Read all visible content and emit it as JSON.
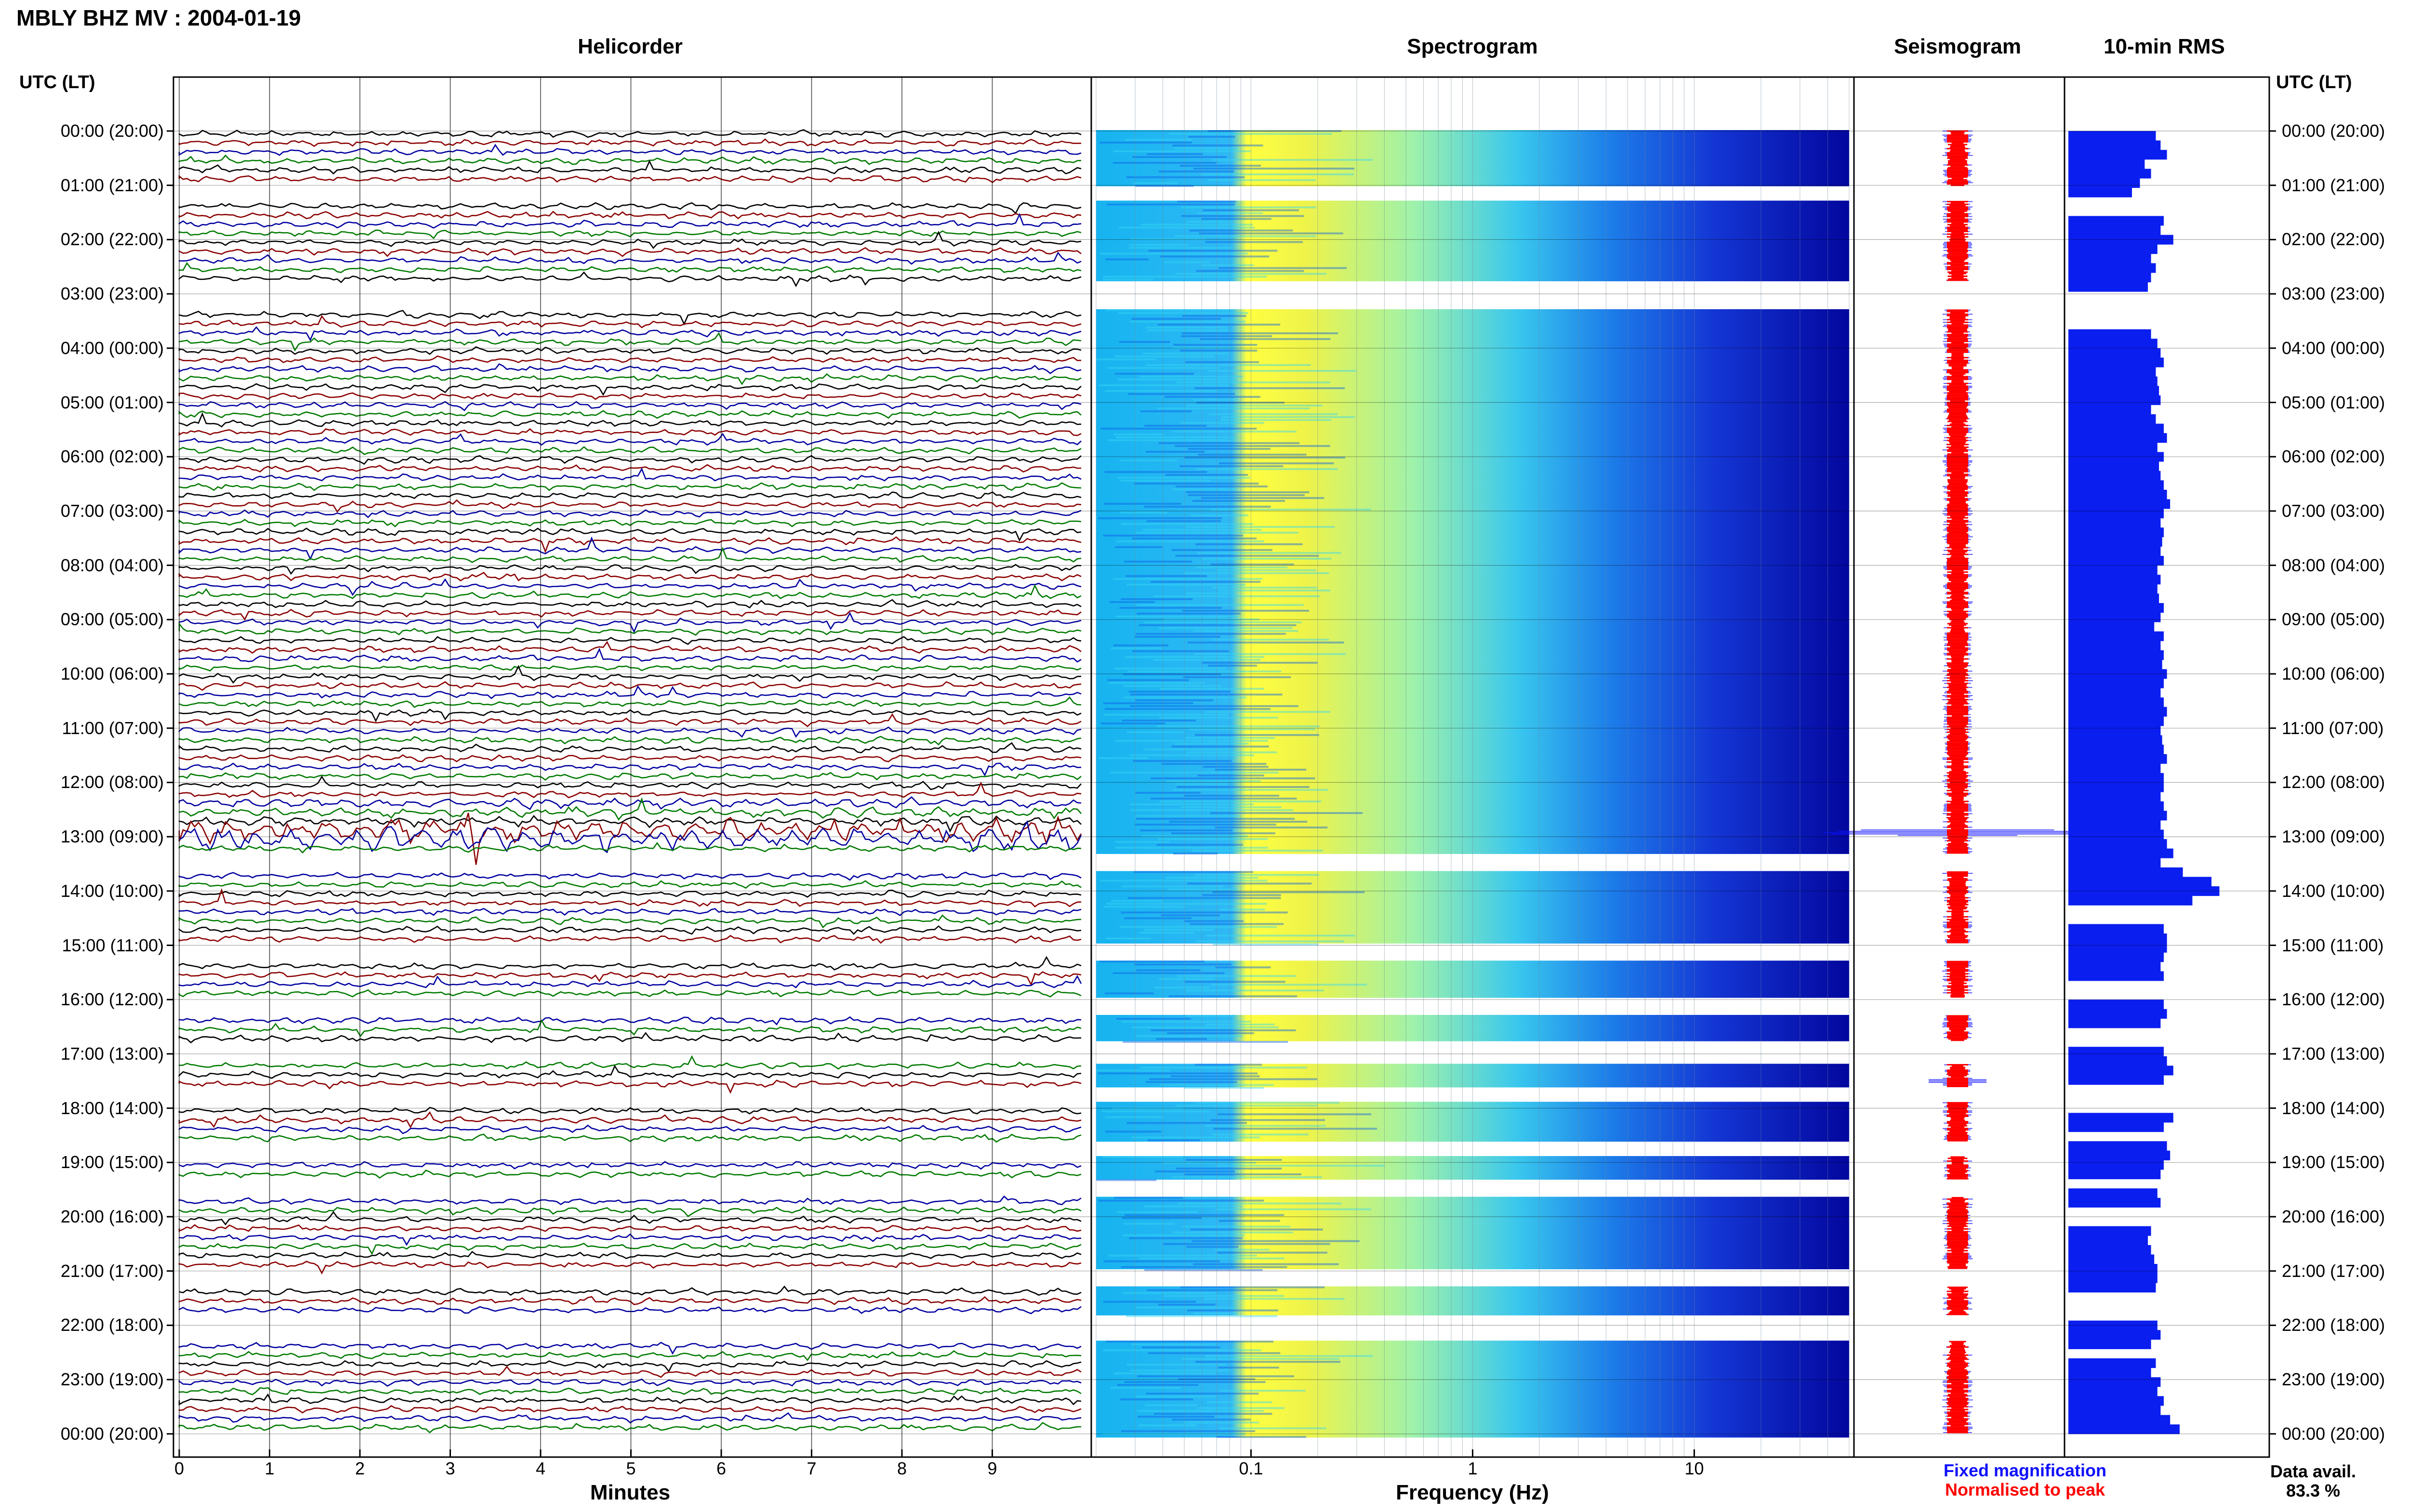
{
  "header": {
    "title": "MBLY BHZ MV : 2004-01-19"
  },
  "panels": {
    "helicorder": "Helicorder",
    "spectrogram": "Spectrogram",
    "seismogram": "Seismogram",
    "rms": "10-min RMS"
  },
  "axis": {
    "utc_label_left": "UTC (LT)",
    "utc_label_right": "UTC (LT)",
    "x_helicorder": "Minutes",
    "x_spectrogram": "Frequency (Hz)"
  },
  "legend": {
    "fixed": "Fixed magnification",
    "normalised": "Normalised to peak",
    "fixed_color": "#1010ff",
    "normalised_color": "#ff0000"
  },
  "availability": {
    "label": "Data avail.",
    "value": "83.3 %"
  },
  "chart_data": {
    "type": "heatmap",
    "title": "MBLY BHZ MV : 2004-01-19",
    "time_labels": [
      "00:00 (20:00)",
      "01:00 (21:00)",
      "02:00 (22:00)",
      "03:00 (23:00)",
      "04:00 (00:00)",
      "05:00 (01:00)",
      "06:00 (02:00)",
      "07:00 (03:00)",
      "08:00 (04:00)",
      "09:00 (05:00)",
      "10:00 (06:00)",
      "11:00 (07:00)",
      "12:00 (08:00)",
      "13:00 (09:00)",
      "14:00 (10:00)",
      "15:00 (11:00)",
      "16:00 (12:00)",
      "17:00 (13:00)",
      "18:00 (14:00)",
      "19:00 (15:00)",
      "20:00 (16:00)",
      "21:00 (17:00)",
      "22:00 (18:00)",
      "23:00 (19:00)",
      "00:00 (20:00)"
    ],
    "helicorder": {
      "xlabel": "Minutes",
      "x_ticks": [
        "0",
        "1",
        "2",
        "3",
        "4",
        "5",
        "6",
        "7",
        "8",
        "9"
      ],
      "xlim": [
        0,
        10
      ],
      "trace_colors": [
        "#000000",
        "#8b0000",
        "#0000a0",
        "#007a00"
      ],
      "gaps_utc_hours": [
        [
          1.0,
          1.3
        ],
        [
          2.75,
          3.3
        ],
        [
          13.3,
          13.65
        ],
        [
          14.95,
          15.3
        ],
        [
          15.95,
          16.3
        ],
        [
          16.75,
          17.2
        ],
        [
          17.6,
          17.9
        ],
        [
          18.6,
          18.9
        ],
        [
          19.3,
          19.65
        ],
        [
          20.95,
          21.3
        ],
        [
          21.8,
          22.3
        ]
      ]
    },
    "spectrogram": {
      "xlabel": "Frequency (Hz)",
      "x_scale": "log",
      "xlim": [
        0.02,
        50
      ],
      "x_ticks": [
        "0.1",
        "1",
        "10"
      ],
      "colormap": [
        "#00007f",
        "#0000ff",
        "#007fff",
        "#00ffff",
        "#7fff7f",
        "#ffff00",
        "#ff7f00"
      ]
    },
    "rms": {
      "name": "10-min RMS",
      "values": [
        0.55,
        0.58,
        0.62,
        0.48,
        0.52,
        0.45,
        0.4,
        0,
        0,
        0.6,
        0.58,
        0.66,
        0.56,
        0.52,
        0.55,
        0.52,
        0.5,
        0,
        0,
        0,
        0,
        0.52,
        0.56,
        0.58,
        0.6,
        0.55,
        0.56,
        0.57,
        0.58,
        0.52,
        0.55,
        0.6,
        0.62,
        0.56,
        0.6,
        0.57,
        0.58,
        0.6,
        0.62,
        0.64,
        0.6,
        0.58,
        0.6,
        0.59,
        0.58,
        0.6,
        0.56,
        0.58,
        0.56,
        0.57,
        0.6,
        0.58,
        0.54,
        0.6,
        0.58,
        0.6,
        0.59,
        0.62,
        0.6,
        0.58,
        0.6,
        0.62,
        0.6,
        0.58,
        0.59,
        0.6,
        0.62,
        0.58,
        0.6,
        0.6,
        0.58,
        0.6,
        0.62,
        0.58,
        0.6,
        0.62,
        0.66,
        0.58,
        0.72,
        0.9,
        0.95,
        0.78,
        0,
        0,
        0.6,
        0.62,
        0.62,
        0.6,
        0.58,
        0.6,
        0,
        0,
        0.6,
        0.62,
        0.58,
        0,
        0,
        0.6,
        0.62,
        0.66,
        0.6,
        0,
        0,
        0,
        0.66,
        0.6,
        0,
        0.62,
        0.64,
        0.6,
        0.58,
        0,
        0.56,
        0.58,
        0,
        0,
        0.52,
        0.5,
        0.52,
        0.54,
        0.56,
        0.56,
        0.55,
        0,
        0,
        0,
        0.56,
        0.58,
        0.52,
        0,
        0.55,
        0.52,
        0.58,
        0.56,
        0.6,
        0.58,
        0.64,
        0.7
      ]
    }
  }
}
